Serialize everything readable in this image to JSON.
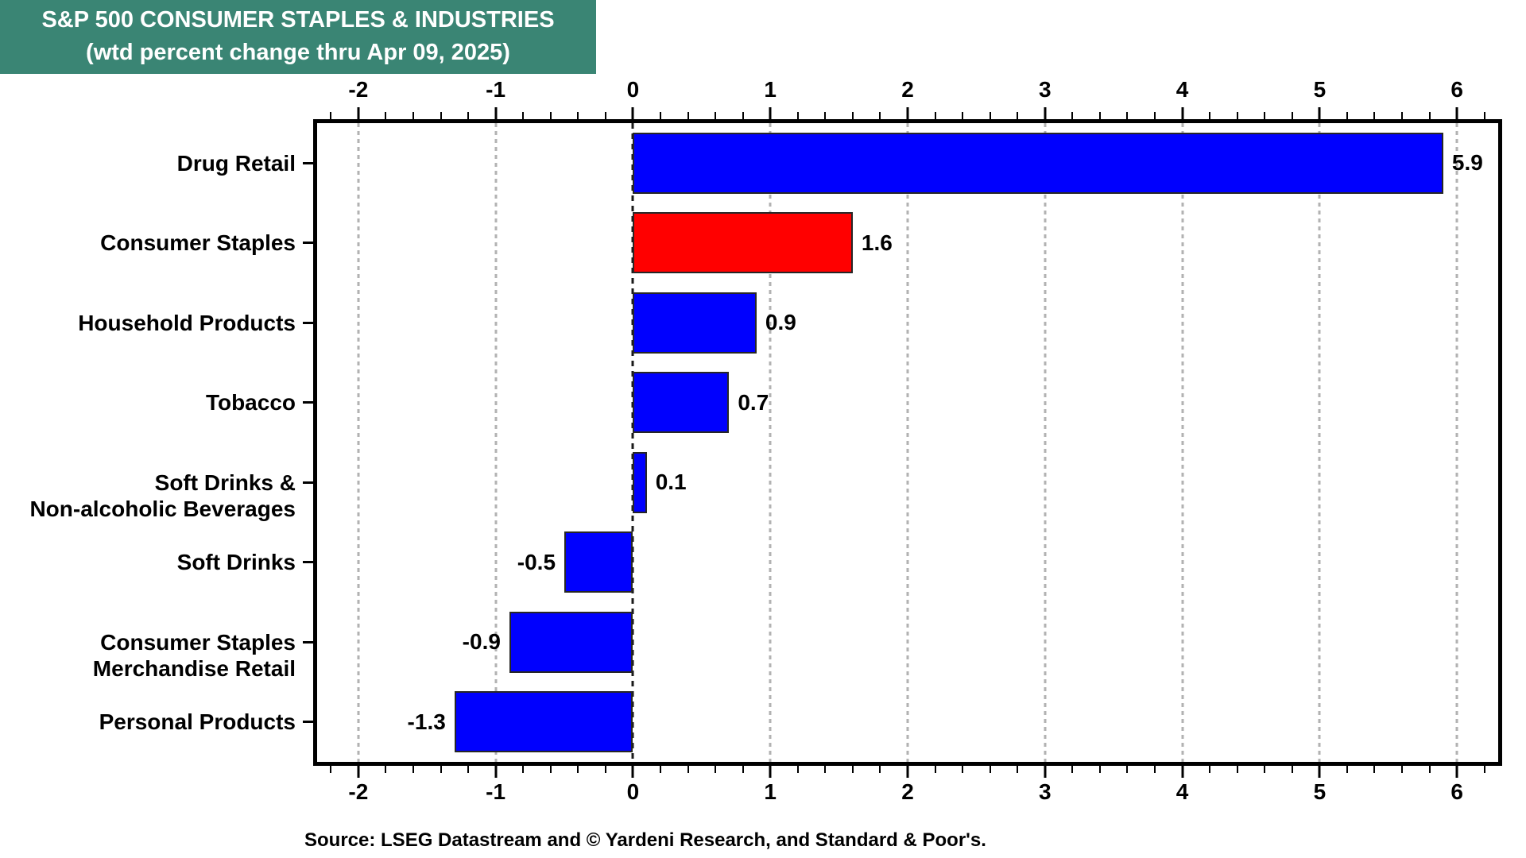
{
  "title": {
    "line1": "S&P 500 CONSUMER STAPLES & INDUSTRIES",
    "line2": "(wtd percent change thru Apr 09, 2025)",
    "bg_color": "#3A8574",
    "text_color": "#FFFFFF"
  },
  "source": "Source: LSEG Datastream and © Yardeni Research, and Standard & Poor's.",
  "chart_data": {
    "type": "bar",
    "orientation": "horizontal",
    "title": "S&P 500 CONSUMER STAPLES & INDUSTRIES",
    "subtitle": "(wtd percent change thru Apr 09, 2025)",
    "categories": [
      "Drug Retail",
      "Consumer Staples",
      "Household Products",
      "Tobacco",
      "Soft Drinks &\nNon-alcoholic Beverages",
      "Soft Drinks",
      "Consumer Staples\nMerchandise Retail",
      "Personal Products"
    ],
    "values": [
      5.9,
      1.6,
      0.9,
      0.7,
      0.1,
      -0.5,
      -0.9,
      -1.3
    ],
    "value_labels": [
      "5.9",
      "1.6",
      "0.9",
      "0.7",
      "0.1",
      "-0.5",
      "-0.9",
      "-1.3"
    ],
    "bar_colors": [
      "#0000FE",
      "#FF0000",
      "#0000FE",
      "#0000FE",
      "#0000FE",
      "#0000FE",
      "#0000FE",
      "#0000FE"
    ],
    "xlabel": "",
    "ylabel": "",
    "xlim": [
      -2.3,
      6.3
    ],
    "x_ticks": [
      -2,
      -1,
      0,
      1,
      2,
      3,
      4,
      5,
      6
    ],
    "x_minor_tick_step": 0.2,
    "grid": "vertical dotted gray at integer ticks",
    "zero_line": "vertical dashed black",
    "axis_label_positions": [
      "top",
      "bottom"
    ],
    "legend": "none",
    "colors": {
      "bar_blue": "#0000FE",
      "bar_red": "#FF0000",
      "grid_gray": "#B2B2B2",
      "zero_line": "#1A1A1A",
      "bar_border": "#262626",
      "text": "#000000"
    }
  }
}
